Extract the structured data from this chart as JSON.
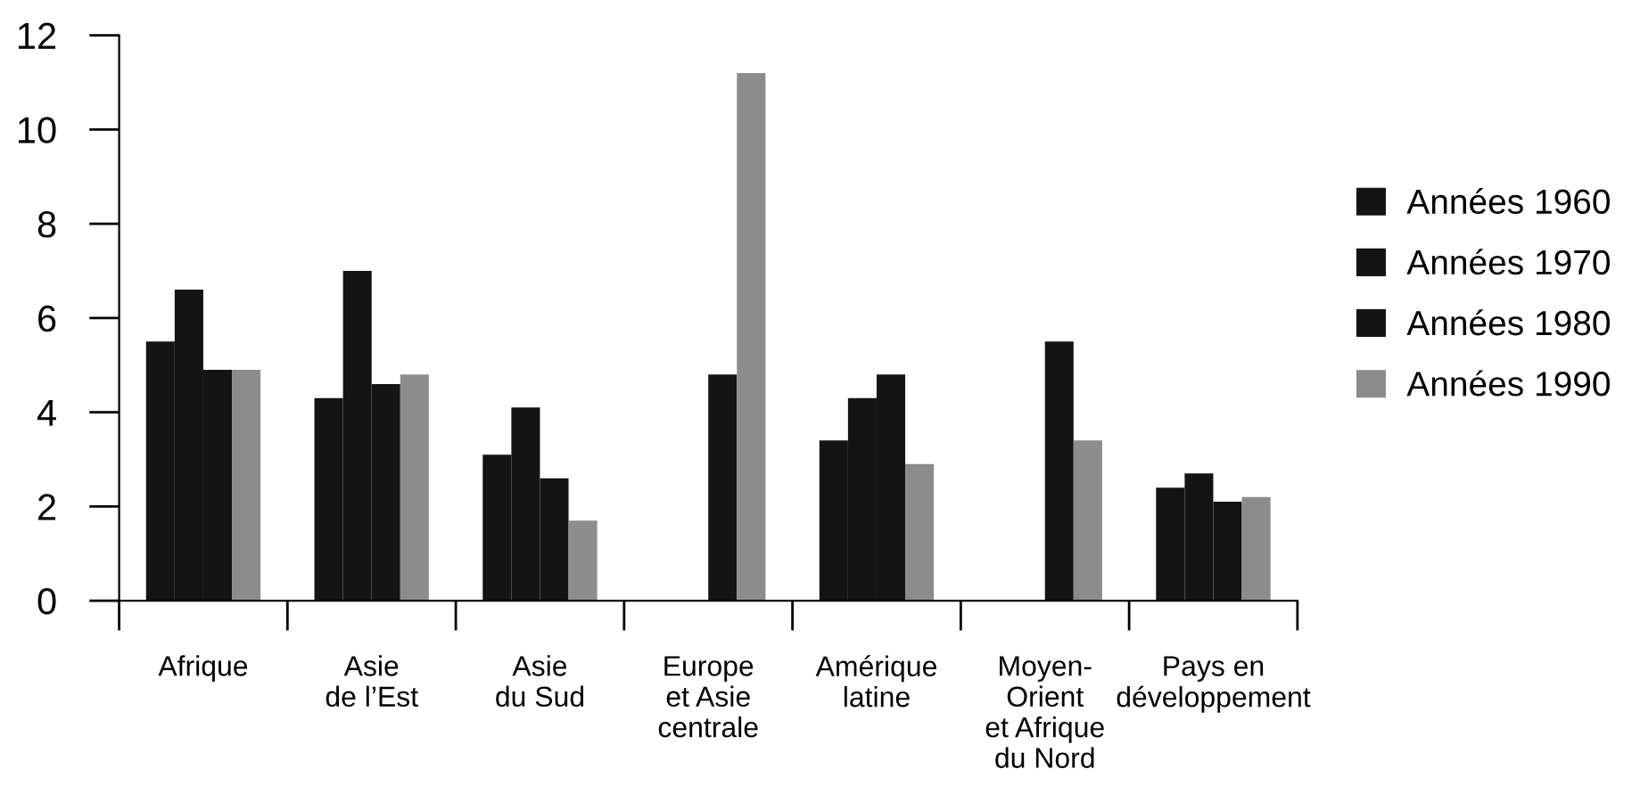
{
  "chart_data": {
    "type": "bar",
    "categories": [
      "Afrique",
      "Asie\nde l’Est",
      "Asie\ndu Sud",
      "Europe\net Asie\ncentrale",
      "Amérique\nlatine",
      "Moyen-\nOrient\net Afrique\ndu Nord",
      "Pays en\ndéveloppement"
    ],
    "series": [
      {
        "name": "Années 1960",
        "color": "#141414",
        "values": [
          5.5,
          4.3,
          3.1,
          null,
          3.4,
          null,
          2.4
        ]
      },
      {
        "name": "Années 1970",
        "color": "#141414",
        "values": [
          6.6,
          7.0,
          4.1,
          null,
          4.3,
          null,
          2.7
        ]
      },
      {
        "name": "Années 1980",
        "color": "#141414",
        "values": [
          4.9,
          4.6,
          2.6,
          4.8,
          4.8,
          5.5,
          2.1
        ]
      },
      {
        "name": "Années 1990",
        "color": "#8c8c8c",
        "values": [
          4.9,
          4.8,
          1.7,
          11.2,
          2.9,
          3.4,
          2.2
        ]
      }
    ],
    "ylim": [
      0,
      12
    ],
    "yticks": [
      0,
      2,
      4,
      6,
      8,
      10,
      12
    ],
    "legend": "right"
  }
}
